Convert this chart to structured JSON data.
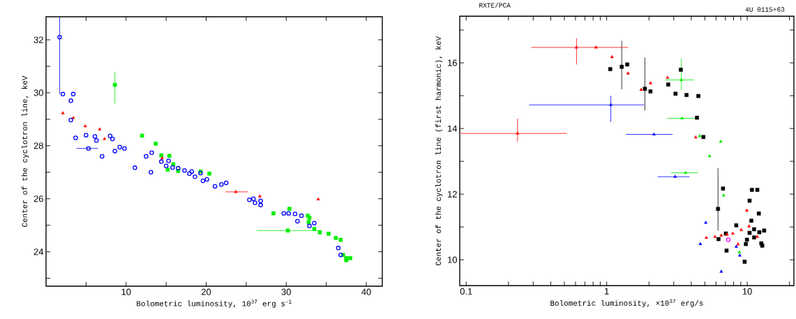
{
  "chart_data": [
    {
      "type": "scatter",
      "xlabel": "Bolometric luminosity, 10$^{37}$ erg s$^{-1}$",
      "ylabel": "Center of the cyclotron line, keV",
      "xlim": [
        0,
        42
      ],
      "ylim": [
        22.7,
        32.87
      ],
      "xticks": [
        {
          "value": 5,
          "label": null
        },
        10,
        {
          "value": 15,
          "label": null
        },
        20,
        {
          "value": 25,
          "label": null
        },
        30,
        {
          "value": 35,
          "label": null
        },
        40
      ],
      "yticks": [
        {
          "value": 23,
          "label": null
        },
        24,
        {
          "value": 25,
          "label": null
        },
        26,
        {
          "value": 27,
          "label": null
        },
        28,
        {
          "value": 29,
          "label": null
        },
        30,
        {
          "value": 31,
          "label": null
        },
        32
      ],
      "series": [
        {
          "color": "#00ee00",
          "marker": "square",
          "x": [
            8.6,
            30.2,
            12.0,
            13.7,
            14.4,
            15.4,
            15.2,
            15.9,
            16.5,
            19.3,
            20.4,
            28.4,
            30.4,
            32.7,
            32.9,
            32.8,
            33.5,
            34.2,
            35.3,
            36.2,
            36.8,
            37.1,
            37.5,
            38.0,
            37.5
          ],
          "values": [
            30.3,
            24.8,
            28.38,
            28.08,
            27.64,
            27.62,
            27.1,
            27.3,
            27.05,
            27.03,
            26.95,
            25.45,
            25.62,
            25.36,
            25.28,
            25.12,
            24.86,
            24.73,
            24.68,
            24.52,
            24.45,
            23.88,
            23.76,
            23.76,
            23.68
          ],
          "errors": [
            [
              29.6,
              30.8
            ],
            null,
            null,
            null,
            null,
            null,
            null,
            null,
            null,
            null,
            null,
            null,
            null,
            null,
            null,
            null,
            null,
            null,
            null,
            null,
            null,
            null,
            null,
            null,
            null
          ],
          "xerrors": [
            null,
            [
              26.3,
              34.4
            ],
            null,
            null,
            null,
            null,
            null,
            null,
            null,
            null,
            null,
            null,
            null,
            null,
            null,
            null,
            null,
            null,
            null,
            null,
            null,
            null,
            null,
            null,
            null
          ]
        },
        {
          "color": "#ff0000",
          "marker": "triangle",
          "x": [
            23.7,
            2.1,
            3.4,
            4.9,
            6.7,
            7.3,
            14.5,
            26.7,
            34.0
          ],
          "values": [
            26.26,
            29.23,
            29.05,
            28.74,
            28.62,
            28.26,
            27.53,
            26.09,
            25.98
          ],
          "xerrors": [
            [
              22.4,
              25.2
            ],
            null,
            null,
            null,
            null,
            null,
            null,
            null,
            null
          ]
        },
        {
          "color": "#0000ff",
          "marker": "circle",
          "x": [
            1.7,
            5.3,
            2.1,
            3.4,
            3.1,
            3.1,
            3.7,
            5.0,
            6.1,
            6.3,
            7.0,
            8.0,
            8.3,
            8.6,
            9.2,
            9.8,
            11.1,
            12.5,
            13.2,
            13.1,
            14.4,
            15.3,
            15.0,
            15.8,
            16.5,
            17.3,
            17.9,
            18.2,
            18.6,
            19.3,
            19.6,
            20.1,
            21.1,
            21.9,
            22.5,
            25.4,
            25.9,
            26.1,
            26.8,
            26.8,
            29.7,
            30.3,
            31.1,
            31.9,
            31.4,
            32.9,
            33.5,
            36.5,
            36.8
          ],
          "values": [
            32.1,
            27.9,
            29.95,
            29.95,
            29.7,
            28.97,
            28.3,
            28.4,
            28.35,
            28.2,
            27.6,
            28.37,
            28.26,
            27.8,
            27.95,
            27.9,
            27.17,
            27.6,
            27.74,
            27.0,
            27.4,
            27.43,
            27.24,
            27.18,
            27.15,
            27.07,
            26.95,
            27.03,
            26.83,
            26.97,
            26.68,
            26.73,
            26.47,
            26.54,
            26.6,
            25.96,
            26.0,
            25.85,
            25.76,
            25.92,
            25.45,
            25.45,
            25.43,
            25.36,
            25.15,
            24.97,
            25.08,
            24.14,
            23.88
          ],
          "errors": [
            [
              29.95,
              32.85
            ],
            null,
            null,
            null,
            null,
            null,
            null,
            null,
            null,
            null,
            null,
            null,
            null,
            null,
            null,
            null,
            null,
            null,
            null,
            null,
            null,
            null,
            null,
            null,
            null,
            null,
            null,
            null,
            null,
            null,
            null,
            null,
            null,
            null,
            null,
            null,
            null,
            null,
            null,
            null,
            null,
            null,
            null,
            null,
            null,
            null,
            null,
            null,
            null
          ],
          "xerrors": [
            null,
            [
              3.8,
              6.5
            ],
            null,
            null,
            null,
            null,
            null,
            null,
            null,
            null,
            null,
            null,
            null,
            null,
            null,
            null,
            null,
            null,
            null,
            null,
            null,
            null,
            null,
            null,
            null,
            null,
            null,
            null,
            null,
            null,
            null,
            null,
            null,
            null,
            null,
            null,
            null,
            null,
            null,
            null,
            null,
            null,
            null,
            null,
            null,
            null,
            null,
            null,
            null
          ]
        }
      ]
    },
    {
      "type": "scatter",
      "title": "RXTE/PCA",
      "annotations": [
        "4U 0115+63"
      ],
      "xlabel": "Bolometric luminosity, ×10$^{37}$ erg/s",
      "ylabel": "Center of the cyclotron line (first harmonic), keV",
      "log": "x",
      "xlim": [
        0.09,
        21.5
      ],
      "ylim": [
        9.21,
        17.42
      ],
      "xticks": [
        0.1,
        {
          "value": 0.2,
          "label": null
        },
        {
          "value": 0.3,
          "label": null
        },
        {
          "value": 0.4,
          "label": null
        },
        {
          "value": 0.5,
          "label": null
        },
        {
          "value": 0.6,
          "label": null
        },
        {
          "value": 0.7,
          "label": null
        },
        {
          "value": 0.8,
          "label": null
        },
        {
          "value": 0.9,
          "label": null
        },
        1,
        {
          "value": 2,
          "label": null
        },
        {
          "value": 3,
          "label": null
        },
        {
          "value": 4,
          "label": null
        },
        {
          "value": 5,
          "label": null
        },
        {
          "value": 6,
          "label": null
        },
        {
          "value": 7,
          "label": null
        },
        {
          "value": 8,
          "label": null
        },
        {
          "value": 9,
          "label": null
        },
        10,
        {
          "value": 20,
          "label": null
        }
      ],
      "yticks": [
        10,
        {
          "value": 11,
          "label": null
        },
        12,
        {
          "value": 13,
          "label": null
        },
        14,
        {
          "value": 15,
          "label": null
        },
        16,
        {
          "value": 17,
          "label": null
        }
      ],
      "series": [
        {
          "color": "#000000",
          "marker": "square",
          "x": [
            1.28,
            1.87,
            6.2,
            1.06,
            1.4,
            2.05,
            2.74,
            3.09,
            3.37,
            3.7,
            4.49,
            4.39,
            4.88,
            6.73,
            7.13,
            6.25,
            7.05,
            8.36,
            9.59,
            9.78,
            9.96,
            10.4,
            10.8,
            11.8,
            12.1,
            10.7,
            11.2,
            12.2,
            13.2,
            12.6,
            12.8,
            10.4,
            11.2
          ],
          "values": [
            15.88,
            15.21,
            11.55,
            15.81,
            15.95,
            15.13,
            15.34,
            15.06,
            15.79,
            15.02,
            14.99,
            14.33,
            13.74,
            12.17,
            10.28,
            10.63,
            10.8,
            11.05,
            9.94,
            10.48,
            10.61,
            11.8,
            12.13,
            12.13,
            11.41,
            11.19,
            10.93,
            10.84,
            10.89,
            10.5,
            10.43,
            10.82,
            10.68
          ],
          "errors": [
            [
              15.19,
              16.67
            ],
            [
              14.55,
              16.16
            ],
            [
              10.89,
              12.79
            ],
            null,
            null,
            null,
            null,
            null,
            null,
            null,
            null,
            null,
            null,
            null,
            null,
            null,
            null,
            null,
            null,
            null,
            null,
            null,
            null,
            null,
            null,
            null,
            null,
            null,
            null,
            null,
            null,
            null,
            null
          ]
        },
        {
          "color": "#ff0000",
          "marker": "triangle",
          "x": [
            0.232,
            0.61,
            0.84,
            1.09,
            1.42,
            1.76,
            2.05,
            2.71,
            4.3,
            5.12,
            5.9,
            6.54,
            7.18,
            7.9,
            9.06,
            9.93,
            10.3,
            11.8,
            8.6
          ],
          "values": [
            13.85,
            16.47,
            16.47,
            16.18,
            15.68,
            15.18,
            15.38,
            15.55,
            13.73,
            10.67,
            10.7,
            10.74,
            10.77,
            10.8,
            10.91,
            11.5,
            11.02,
            10.7,
            10.47
          ],
          "errors": [
            [
              13.6,
              14.3
            ],
            [
              15.95,
              16.75
            ],
            null,
            null,
            null,
            null,
            null,
            null,
            null,
            null,
            null,
            null,
            null,
            null,
            null,
            null,
            null,
            null,
            null
          ],
          "xerrors": [
            [
              0.091,
              0.52
            ],
            [
              0.29,
              1.42
            ],
            null,
            null,
            null,
            null,
            null,
            null,
            null,
            null,
            null,
            null,
            null,
            null,
            null,
            null,
            null,
            null,
            null
          ]
        },
        {
          "color": "#00ee00",
          "marker": "triangle",
          "x": [
            3.4,
            3.44,
            3.64,
            4.6,
            6.48,
            5.4,
            6.79,
            8.8
          ],
          "values": [
            15.48,
            14.31,
            12.65,
            13.77,
            13.6,
            13.16,
            11.96,
            10.23
          ],
          "errors": [
            [
              15.18,
              16.14
            ],
            null,
            null,
            null,
            null,
            null,
            null,
            null
          ],
          "xerrors": [
            [
              2.63,
              4.2
            ],
            [
              2.68,
              4.32
            ],
            [
              2.86,
              4.45
            ],
            null,
            null,
            null,
            null,
            null
          ]
        },
        {
          "color": "#0000ff",
          "marker": "triangle",
          "x": [
            1.07,
            2.17,
            3.07,
            5.07,
            4.64,
            6.54,
            8.36,
            8.85
          ],
          "values": [
            14.72,
            13.82,
            12.53,
            11.13,
            10.48,
            9.64,
            10.4,
            10.13
          ],
          "errors": [
            [
              14.2,
              15.0
            ],
            null,
            null,
            null,
            null,
            null,
            null,
            null
          ],
          "xerrors": [
            [
              0.28,
              1.85
            ],
            [
              1.37,
              2.95
            ],
            [
              2.3,
              3.88
            ],
            null,
            null,
            null,
            null,
            null
          ]
        },
        {
          "color": "#ff00ff",
          "marker": "circle",
          "x": [
            7.33
          ],
          "values": [
            10.61
          ]
        }
      ]
    }
  ]
}
